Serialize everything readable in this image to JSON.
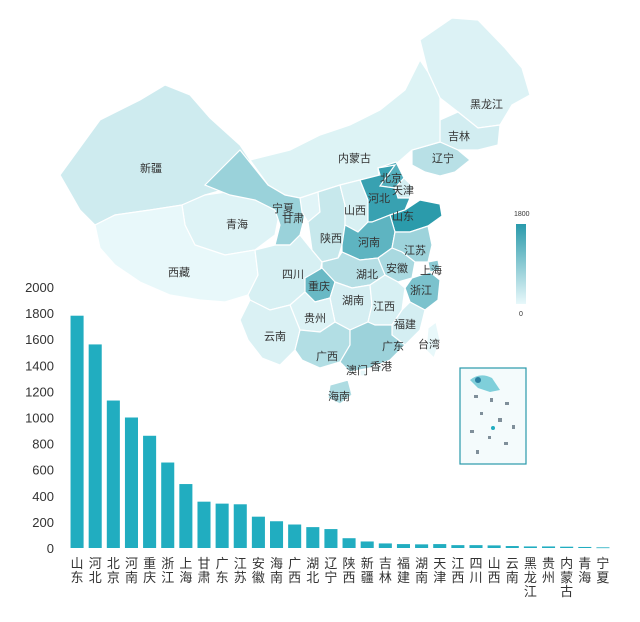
{
  "colors": {
    "bar": "#21adc0",
    "map_low": "#e8f8fa",
    "map_high": "#2a9aab",
    "outline": "#bfe6ec"
  },
  "legend": {
    "max_label": "1800",
    "min_label": "0",
    "max": 1800,
    "min": 0
  },
  "map_labels": [
    {
      "name": "黑龙江",
      "value": 12
    },
    {
      "name": "吉林",
      "value": 35
    },
    {
      "name": "辽宁",
      "value": 145
    },
    {
      "name": "内蒙古",
      "value": 10
    },
    {
      "name": "新疆",
      "value": 50
    },
    {
      "name": "北京",
      "value": 1130
    },
    {
      "name": "天津",
      "value": 30
    },
    {
      "name": "河北",
      "value": 1560
    },
    {
      "name": "山东",
      "value": 1780
    },
    {
      "name": "宁夏",
      "value": 5
    },
    {
      "name": "山西",
      "value": 20
    },
    {
      "name": "青海",
      "value": 8
    },
    {
      "name": "甘肃",
      "value": 355
    },
    {
      "name": "陕西",
      "value": 75
    },
    {
      "name": "河南",
      "value": 1000
    },
    {
      "name": "江苏",
      "value": 335
    },
    {
      "name": "安徽",
      "value": 240
    },
    {
      "name": "上海",
      "value": 490
    },
    {
      "name": "西藏",
      "value": 0
    },
    {
      "name": "四川",
      "value": 22
    },
    {
      "name": "湖北",
      "value": 160
    },
    {
      "name": "重庆",
      "value": 860
    },
    {
      "name": "浙江",
      "value": 655
    },
    {
      "name": "湖南",
      "value": 28
    },
    {
      "name": "江西",
      "value": 22
    },
    {
      "name": "贵州",
      "value": 12
    },
    {
      "name": "福建",
      "value": 30
    },
    {
      "name": "云南",
      "value": 15
    },
    {
      "name": "广东",
      "value": 340
    },
    {
      "name": "台湾",
      "value": 0
    },
    {
      "name": "广西",
      "value": 180
    },
    {
      "name": "澳门",
      "value": 0
    },
    {
      "name": "香港",
      "value": 0
    },
    {
      "name": "海南",
      "value": 205
    }
  ],
  "chart_data": {
    "type": "bar",
    "categories": [
      "山东",
      "河北",
      "北京",
      "河南",
      "重庆",
      "浙江",
      "上海",
      "甘肃",
      "广东",
      "江苏",
      "安徽",
      "海南",
      "广西",
      "湖北",
      "辽宁",
      "陕西",
      "新疆",
      "吉林",
      "福建",
      "湖南",
      "天津",
      "江西",
      "四川",
      "山西",
      "云南",
      "黑龙江",
      "贵州",
      "内蒙古",
      "青海",
      "宁夏"
    ],
    "values": [
      1780,
      1560,
      1130,
      1000,
      860,
      655,
      490,
      355,
      340,
      335,
      240,
      205,
      180,
      160,
      145,
      75,
      50,
      35,
      30,
      28,
      30,
      22,
      22,
      20,
      15,
      12,
      12,
      10,
      8,
      5
    ],
    "ylim": [
      0,
      2000
    ],
    "yticks": [
      "0",
      "200",
      "400",
      "600",
      "800",
      "1000",
      "1200",
      "1400",
      "1600",
      "1800",
      "2000"
    ],
    "grid": false
  }
}
